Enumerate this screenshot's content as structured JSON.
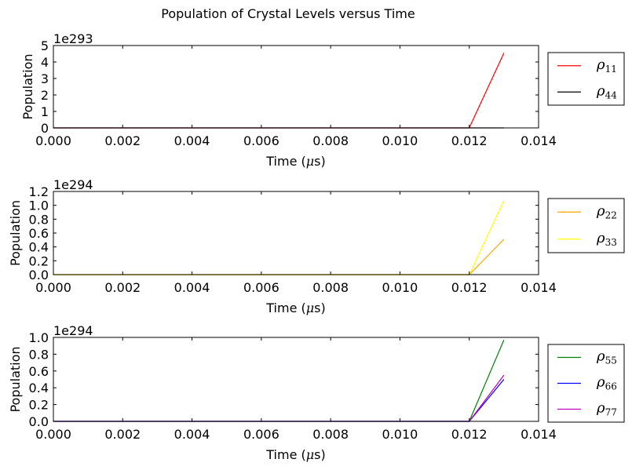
{
  "title": "Population of Crystal Levels versus Time",
  "chart_data": [
    {
      "type": "line",
      "ylabel": "Population",
      "xlabel": "Time ($\\mu$s)",
      "offset_text": "1e293",
      "xlim": [
        0,
        0.014
      ],
      "ylim": [
        0,
        5
      ],
      "x_ticks": [
        "0.000",
        "0.002",
        "0.004",
        "0.006",
        "0.008",
        "0.010",
        "0.012",
        "0.014"
      ],
      "y_ticks": [
        "0",
        "1",
        "2",
        "3",
        "4",
        "5"
      ],
      "legend_position": "outside-right",
      "series": [
        {
          "name": "ρ11",
          "symbol": "ρ",
          "sub": "11",
          "color": "#ff0000",
          "x": [
            0,
            0.012,
            0.013
          ],
          "y": [
            0,
            0,
            4.55
          ]
        },
        {
          "name": "ρ44",
          "symbol": "ρ",
          "sub": "44",
          "color": "#000000",
          "x": [
            0,
            0.012,
            0.013
          ],
          "y": [
            0,
            0,
            0
          ]
        }
      ]
    },
    {
      "type": "line",
      "ylabel": "Population",
      "xlabel": "Time ($\\mu$s)",
      "offset_text": "1e294",
      "xlim": [
        0,
        0.014
      ],
      "ylim": [
        0,
        1.2
      ],
      "x_ticks": [
        "0.000",
        "0.002",
        "0.004",
        "0.006",
        "0.008",
        "0.010",
        "0.012",
        "0.014"
      ],
      "y_ticks": [
        "0.0",
        "0.2",
        "0.4",
        "0.6",
        "0.8",
        "1.0",
        "1.2"
      ],
      "legend_position": "outside-right",
      "series": [
        {
          "name": "ρ22",
          "symbol": "ρ",
          "sub": "22",
          "color": "#ffa500",
          "x": [
            0,
            0.012,
            0.013
          ],
          "y": [
            0,
            0,
            0.51
          ]
        },
        {
          "name": "ρ33",
          "symbol": "ρ",
          "sub": "33",
          "color": "#ffff00",
          "x": [
            0,
            0.012,
            0.013
          ],
          "y": [
            0,
            0,
            1.07
          ]
        }
      ]
    },
    {
      "type": "line",
      "ylabel": "Population",
      "xlabel": "Time ($\\mu$s)",
      "offset_text": "1e294",
      "xlim": [
        0,
        0.014
      ],
      "ylim": [
        0,
        1.0
      ],
      "x_ticks": [
        "0.000",
        "0.002",
        "0.004",
        "0.006",
        "0.008",
        "0.010",
        "0.012",
        "0.014"
      ],
      "y_ticks": [
        "0.0",
        "0.2",
        "0.4",
        "0.6",
        "0.8",
        "1.0"
      ],
      "legend_position": "outside-right",
      "series": [
        {
          "name": "ρ55",
          "symbol": "ρ",
          "sub": "55",
          "color": "#008000",
          "x": [
            0,
            0.012,
            0.013
          ],
          "y": [
            0,
            0,
            0.97
          ]
        },
        {
          "name": "ρ66",
          "symbol": "ρ",
          "sub": "66",
          "color": "#0000ff",
          "x": [
            0,
            0.012,
            0.013
          ],
          "y": [
            0,
            0,
            0.5
          ]
        },
        {
          "name": "ρ77",
          "symbol": "ρ",
          "sub": "77",
          "color": "#bf00bf",
          "x": [
            0,
            0.012,
            0.013
          ],
          "y": [
            0,
            0,
            0.55
          ]
        }
      ]
    }
  ]
}
